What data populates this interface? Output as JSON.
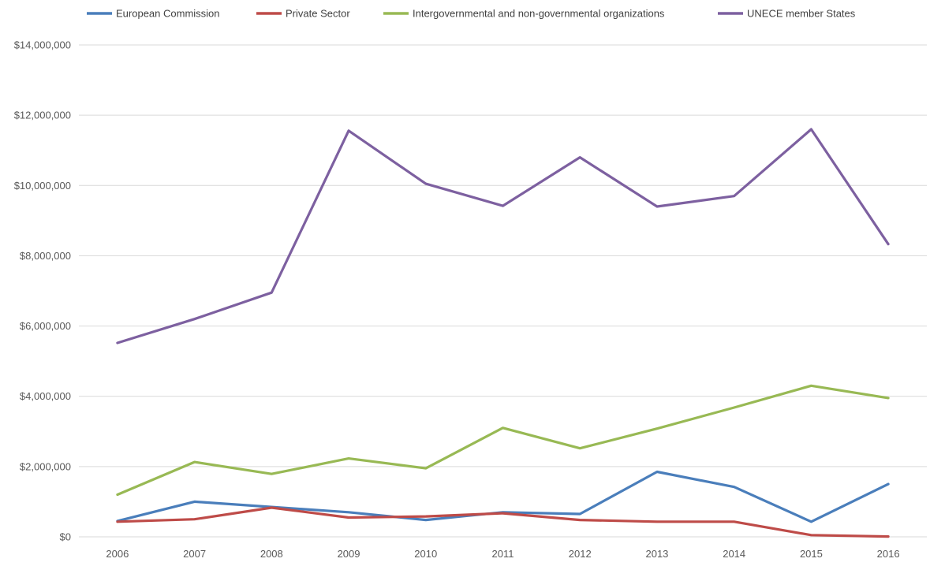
{
  "chart_data": {
    "type": "line",
    "x": [
      "2006",
      "2007",
      "2008",
      "2009",
      "2010",
      "2011",
      "2012",
      "2013",
      "2014",
      "2015",
      "2016"
    ],
    "ylim": [
      0,
      14000000
    ],
    "yticks": [
      0,
      2000000,
      4000000,
      6000000,
      8000000,
      10000000,
      12000000,
      14000000
    ],
    "ytick_labels": [
      "$0",
      "$2,000,000",
      "$4,000,000",
      "$6,000,000",
      "$8,000,000",
      "$10,000,000",
      "$12,000,000",
      "$14,000,000"
    ],
    "grid": true,
    "legend_position": "top",
    "series": [
      {
        "name": "European Commission",
        "color": "#4a7ebb",
        "values": [
          450000,
          1000000,
          850000,
          700000,
          480000,
          700000,
          650000,
          1850000,
          1420000,
          430000,
          1500000
        ]
      },
      {
        "name": "Private Sector",
        "color": "#be4b48",
        "values": [
          430000,
          500000,
          830000,
          550000,
          580000,
          670000,
          480000,
          430000,
          430000,
          50000,
          10000
        ]
      },
      {
        "name": "Intergovernmental and non-governmental organizations",
        "color": "#98b954",
        "values": [
          1200000,
          2130000,
          1790000,
          2230000,
          1950000,
          3100000,
          2520000,
          3080000,
          3680000,
          4300000,
          3950000
        ]
      },
      {
        "name": "UNECE member States",
        "color": "#7d60a0",
        "values": [
          5520000,
          6200000,
          6950000,
          11560000,
          10050000,
          9420000,
          10800000,
          9400000,
          9700000,
          11600000,
          8330000
        ]
      }
    ]
  }
}
